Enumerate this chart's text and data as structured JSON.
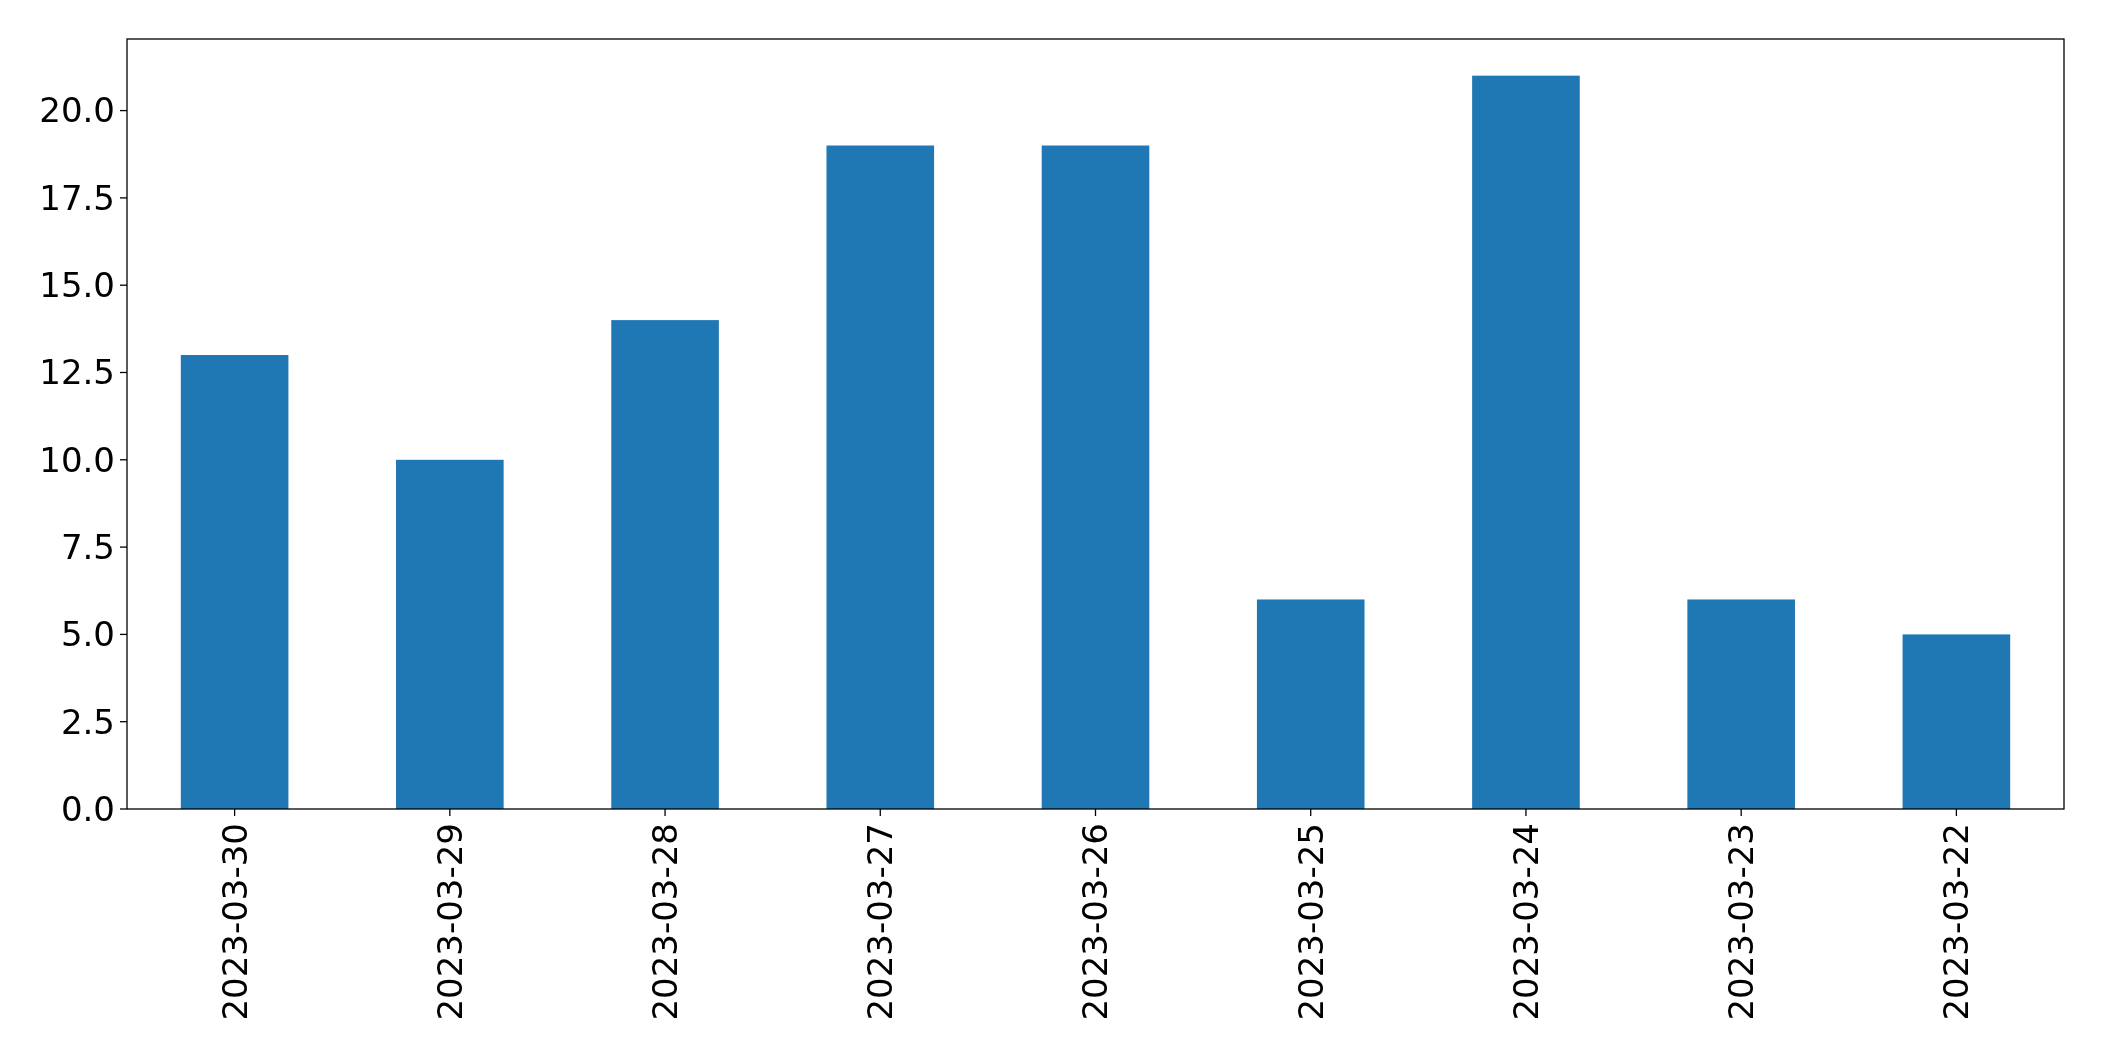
{
  "chart_data": {
    "type": "bar",
    "categories": [
      "2023-03-30",
      "2023-03-29",
      "2023-03-28",
      "2023-03-27",
      "2023-03-26",
      "2023-03-25",
      "2023-03-24",
      "2023-03-23",
      "2023-03-22"
    ],
    "values": [
      13,
      10,
      14,
      19,
      19,
      6,
      21,
      6,
      5
    ],
    "color": "#1f77b4",
    "ylim": [
      0,
      22.05
    ],
    "yticks": [
      {
        "value": 0,
        "label": "0.0"
      },
      {
        "value": 2.5,
        "label": "2.5"
      },
      {
        "value": 5,
        "label": "5.0"
      },
      {
        "value": 7.5,
        "label": "7.5"
      },
      {
        "value": 10,
        "label": "10.0"
      },
      {
        "value": 12.5,
        "label": "12.5"
      },
      {
        "value": 15,
        "label": "15.0"
      },
      {
        "value": 17.5,
        "label": "17.5"
      },
      {
        "value": 20,
        "label": "20.0"
      }
    ]
  }
}
